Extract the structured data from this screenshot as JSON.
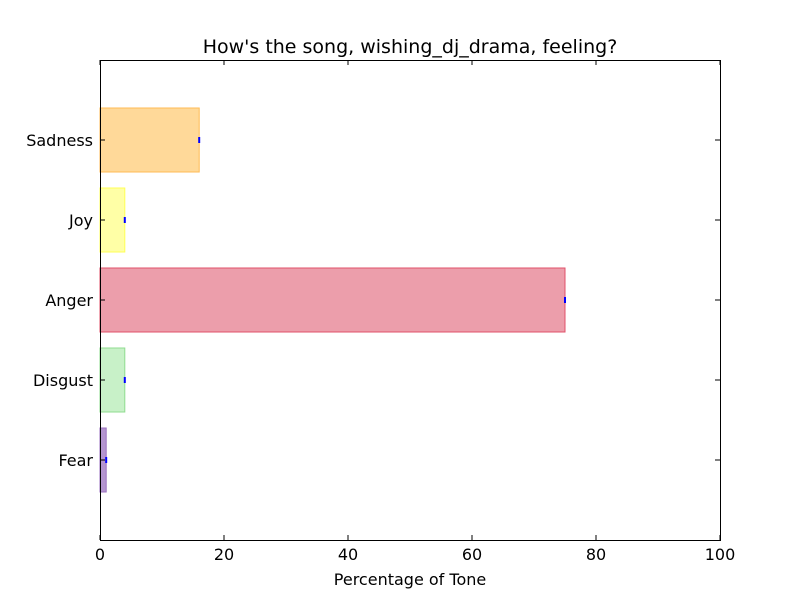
{
  "chart_data": {
    "type": "bar",
    "orientation": "horizontal",
    "title": "How's the song, wishing_dj_drama, feeling?",
    "xlabel": "Percentage of Tone",
    "ylabel": "",
    "xlim": [
      0,
      100
    ],
    "xticks": [
      "0",
      "20",
      "40",
      "60",
      "80",
      "100"
    ],
    "grid": false,
    "categories": [
      "Fear",
      "Disgust",
      "Anger",
      "Joy",
      "Sadness"
    ],
    "values": [
      1,
      4,
      75,
      4,
      16
    ],
    "colors": [
      "#9b72c0",
      "#b5ecb5",
      "#e67e8f",
      "#ffff88",
      "#ffcc77"
    ],
    "edge_colors": [
      "#9b72c0",
      "#8fdc8f",
      "#e0506a",
      "#ffff55",
      "#ffbb55"
    ],
    "error_marker_color": "#0000ff"
  }
}
